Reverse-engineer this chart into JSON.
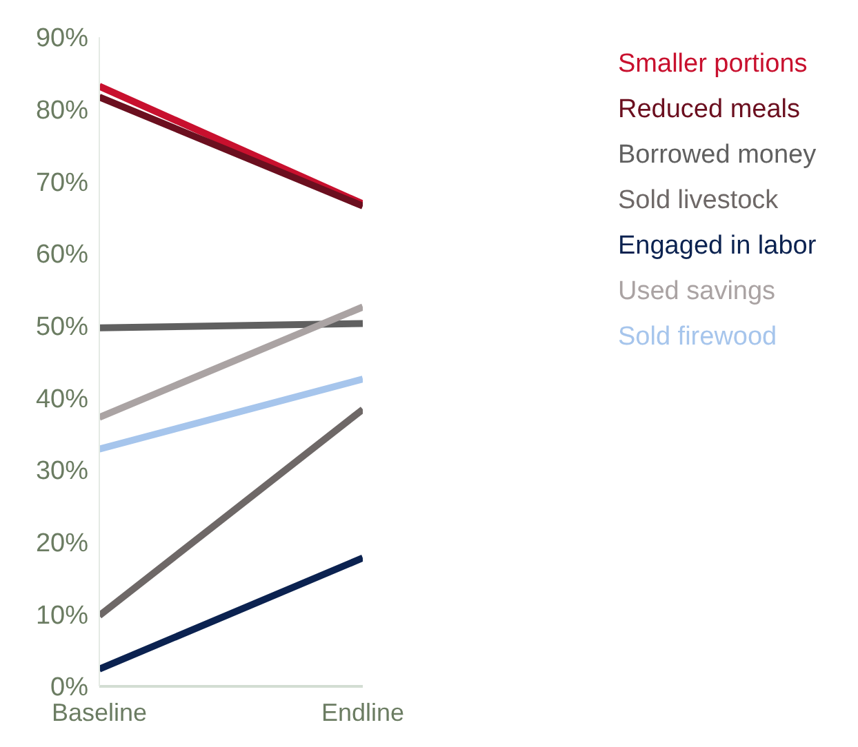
{
  "chart_data": {
    "type": "line",
    "categories": [
      "Baseline",
      "Endline"
    ],
    "series": [
      {
        "name": "Smaller portions",
        "color": "#c8102e",
        "values": [
          83.2,
          66.9
        ]
      },
      {
        "name": "Reduced meals",
        "color": "#6b0f1f",
        "values": [
          81.7,
          66.6
        ]
      },
      {
        "name": "Borrowed money",
        "color": "#606060",
        "values": [
          49.7,
          50.3
        ]
      },
      {
        "name": "Sold livestock",
        "color": "#6e6867",
        "values": [
          9.8,
          38.4
        ]
      },
      {
        "name": "Engaged in labor",
        "color": "#0b2250",
        "values": [
          2.4,
          17.8
        ]
      },
      {
        "name": "Used savings",
        "color": "#aaa3a3",
        "values": [
          37.3,
          52.6
        ]
      },
      {
        "name": "Sold firewood",
        "color": "#a6c5ec",
        "values": [
          32.9,
          42.6
        ]
      }
    ],
    "ylim": [
      0,
      90
    ],
    "yticks": [
      {
        "value": 0,
        "label": "0%"
      },
      {
        "value": 10,
        "label": "10%"
      },
      {
        "value": 20,
        "label": "20%"
      },
      {
        "value": 30,
        "label": "30%"
      },
      {
        "value": 40,
        "label": "40%"
      },
      {
        "value": 50,
        "label": "50%"
      },
      {
        "value": 60,
        "label": "60%"
      },
      {
        "value": 70,
        "label": "70%"
      },
      {
        "value": 80,
        "label": "80%"
      },
      {
        "value": 90,
        "label": "90%"
      }
    ],
    "grid": false,
    "legend": "top right",
    "marker": "none",
    "line_style": "solid"
  }
}
